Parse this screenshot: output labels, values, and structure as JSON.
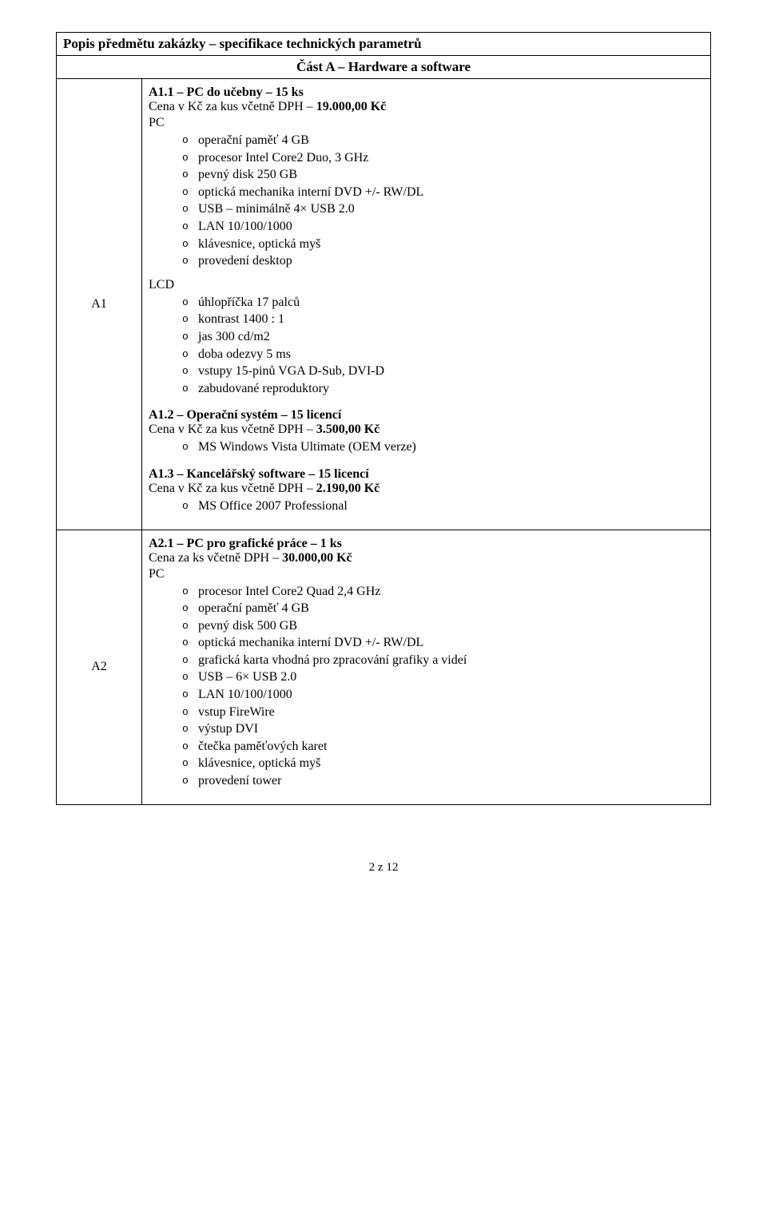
{
  "header": "Popis předmětu zakázky – specifikace technických parametrů",
  "subheader": "Část A – Hardware a software",
  "rowA1": {
    "label": "A1",
    "s1": {
      "title": "A1.1 – PC do učebny – 15 ks",
      "price_prefix": "Cena v Kč za kus včetně DPH – ",
      "price": "19.000,00 Kč",
      "pc_label": "PC",
      "pc_items": [
        "operační paměť 4 GB",
        "procesor Intel Core2 Duo, 3 GHz",
        "pevný disk 250 GB",
        "optická mechanika interní DVD +/- RW/DL",
        "USB – minimálně 4× USB 2.0",
        "LAN 10/100/1000",
        "klávesnice, optická myš",
        "provedení desktop"
      ],
      "lcd_label": "LCD",
      "lcd_items": [
        "úhlopříčka 17 palců",
        "kontrast 1400 : 1",
        "jas 300 cd/m2",
        "doba odezvy 5 ms",
        "vstupy 15-pinů VGA D-Sub, DVI-D",
        "zabudované reproduktory"
      ]
    },
    "s2": {
      "title": "A1.2 – Operační systém – 15 licencí",
      "price_prefix": "Cena v Kč za kus včetně DPH – ",
      "price": "3.500,00 Kč",
      "items": [
        "MS Windows Vista Ultimate (OEM verze)"
      ]
    },
    "s3": {
      "title": "A1.3 – Kancelářský software – 15 licencí",
      "price_prefix": "Cena v Kč za kus včetně DPH – ",
      "price": "2.190,00 Kč",
      "items": [
        " MS Office 2007 Professional"
      ]
    }
  },
  "rowA2": {
    "label": "A2",
    "s1": {
      "title": "A2.1 – PC pro grafické práce – 1 ks",
      "price_prefix": "Cena za ks včetně DPH – ",
      "price": "30.000,00 Kč",
      "pc_label": "PC",
      "pc_items": [
        "procesor Intel Core2 Quad 2,4 GHz",
        "operační paměť 4 GB",
        "pevný disk 500 GB",
        "optická mechanika interní DVD +/- RW/DL",
        "grafická karta vhodná pro zpracování grafiky a videí",
        "USB – 6× USB 2.0",
        "LAN 10/100/1000",
        "vstup FireWire",
        "výstup DVI",
        "čtečka paměťových karet",
        "klávesnice, optická myš",
        "provedení tower"
      ]
    }
  },
  "footer": "2 z 12"
}
